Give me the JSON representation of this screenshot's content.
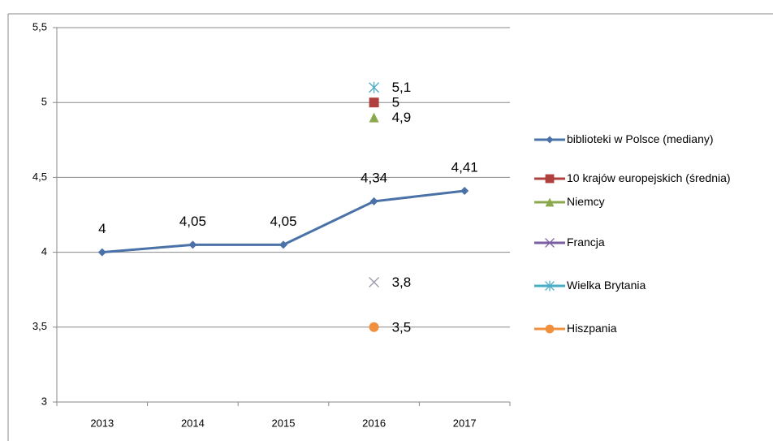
{
  "chart_data": {
    "type": "line",
    "categories": [
      "2013",
      "2014",
      "2015",
      "2016",
      "2017"
    ],
    "series": [
      {
        "name": "biblioteki w Polsce (mediany)",
        "color": "#4a72a8",
        "marker": "diamond",
        "values": [
          4,
          4.05,
          4.05,
          4.34,
          4.41
        ],
        "value_labels": [
          "4",
          "4,05",
          "4,05",
          "4,34",
          "4,41"
        ]
      },
      {
        "name": "10 krajów europejskich (średnia)",
        "color": "#b0403e",
        "marker": "square",
        "values": [
          null,
          null,
          null,
          5,
          null
        ],
        "value_labels": [
          null,
          null,
          null,
          "5",
          null
        ]
      },
      {
        "name": "Niemcy",
        "color": "#8aa84c",
        "marker": "triangle",
        "values": [
          null,
          null,
          null,
          4.9,
          null
        ],
        "value_labels": [
          null,
          null,
          null,
          "4,9",
          null
        ]
      },
      {
        "name": "Francja",
        "color": "#7a5ea0",
        "marker": "x",
        "values": [
          null,
          null,
          null,
          3.8,
          null
        ],
        "value_labels": [
          null,
          null,
          null,
          "3,8",
          null
        ]
      },
      {
        "name": "Wielka Brytania",
        "color": "#4bacc6",
        "marker": "star",
        "values": [
          null,
          null,
          null,
          5.1,
          null
        ],
        "value_labels": [
          null,
          null,
          null,
          "5,1",
          null
        ]
      },
      {
        "name": "Hiszpania",
        "color": "#f0903e",
        "marker": "circle",
        "values": [
          null,
          null,
          null,
          3.5,
          null
        ],
        "value_labels": [
          null,
          null,
          null,
          "3,5",
          null
        ]
      }
    ],
    "ylim": [
      3,
      5.5
    ],
    "yticks": [
      3,
      {
        "value": 3.5,
        "label": "3,5"
      },
      4,
      {
        "value": 4.5,
        "label": "4,5"
      },
      5,
      {
        "value": 5.5,
        "label": "5,5"
      }
    ],
    "grid": true,
    "legend": "right"
  }
}
